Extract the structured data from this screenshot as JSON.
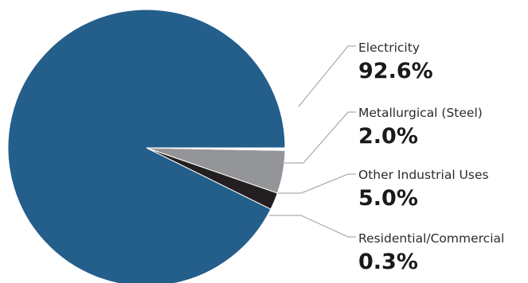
{
  "chart_data": {
    "type": "pie",
    "categories": [
      "Electricity",
      "Metallurgical (Steel)",
      "Other Industrial Uses",
      "Residential/Commercial"
    ],
    "values": [
      92.6,
      2.0,
      5.0,
      0.3
    ],
    "value_labels": [
      "92.6%",
      "2.0%",
      "5.0%",
      "0.3%"
    ],
    "colors": [
      "#245e8a",
      "#231f20",
      "#939598",
      "#ffffff"
    ],
    "start_angle_deg": 0,
    "direction": "clockwise",
    "legend": "none"
  }
}
